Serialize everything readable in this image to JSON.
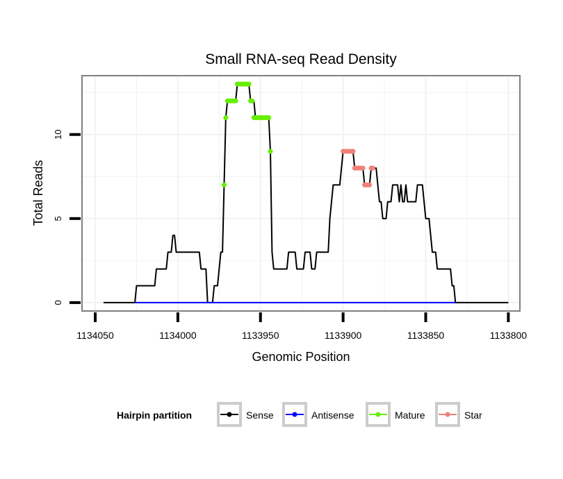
{
  "chart_data": {
    "type": "line",
    "title": "Small RNA-seq Read Density",
    "xlabel": "Genomic Position",
    "ylabel": "Total Reads",
    "xlim": [
      1134058,
      1133793
    ],
    "ylim": [
      -0.5,
      13.5
    ],
    "x_ticks": [
      1134050,
      1134000,
      1133950,
      1133900,
      1133850,
      1133800
    ],
    "x_tick_labels": [
      "1134050",
      "1134000",
      "1133950",
      "1133900",
      "1133850",
      "1133800"
    ],
    "y_ticks": [
      0,
      5,
      10
    ],
    "y_tick_labels": [
      "0",
      "5",
      "10"
    ],
    "legend": {
      "title": "Hairpin partition",
      "placement": "bottom",
      "entries": [
        "Sense",
        "Antisense",
        "Mature",
        "Star"
      ]
    },
    "colors": {
      "Sense": "#000000",
      "Antisense": "#0000ff",
      "Mature": "#66ee00",
      "Star": "#f08078",
      "grid": "#f2f2f2",
      "panel_border": "#7f7f7f"
    },
    "series": [
      {
        "name": "Sense",
        "points": [
          [
            1134045,
            0
          ],
          [
            1134026,
            0
          ],
          [
            1134025,
            1
          ],
          [
            1134014,
            1
          ],
          [
            1134013,
            2
          ],
          [
            1134007,
            2
          ],
          [
            1134006,
            3
          ],
          [
            1134004,
            3
          ],
          [
            1134003,
            4
          ],
          [
            1134002,
            4
          ],
          [
            1134001,
            3
          ],
          [
            1133987,
            3
          ],
          [
            1133986,
            2
          ],
          [
            1133983,
            2
          ],
          [
            1133982,
            0
          ],
          [
            1133979,
            0
          ],
          [
            1133978,
            1
          ],
          [
            1133976,
            1
          ],
          [
            1133975,
            2
          ],
          [
            1133974,
            3
          ],
          [
            1133973,
            3
          ],
          [
            1133972,
            7
          ],
          [
            1133971,
            11
          ],
          [
            1133970,
            12
          ],
          [
            1133965,
            12
          ],
          [
            1133964,
            13
          ],
          [
            1133957,
            13
          ],
          [
            1133956,
            12
          ],
          [
            1133954,
            12
          ],
          [
            1133953,
            11
          ],
          [
            1133945,
            11
          ],
          [
            1133944,
            9
          ],
          [
            1133943,
            3
          ],
          [
            1133942,
            2
          ],
          [
            1133934,
            2
          ],
          [
            1133933,
            3
          ],
          [
            1133929,
            3
          ],
          [
            1133928,
            2
          ],
          [
            1133924,
            2
          ],
          [
            1133923,
            3
          ],
          [
            1133920,
            3
          ],
          [
            1133919,
            2
          ],
          [
            1133917,
            2
          ],
          [
            1133916,
            3
          ],
          [
            1133909,
            3
          ],
          [
            1133908,
            5
          ],
          [
            1133907,
            6
          ],
          [
            1133906,
            7
          ],
          [
            1133902,
            7
          ],
          [
            1133901,
            8
          ],
          [
            1133900,
            9
          ],
          [
            1133894,
            9
          ],
          [
            1133893,
            8
          ],
          [
            1133888,
            8
          ],
          [
            1133887,
            7
          ],
          [
            1133884,
            7
          ],
          [
            1133883,
            8
          ],
          [
            1133880,
            8
          ],
          [
            1133879,
            7
          ],
          [
            1133878,
            6
          ],
          [
            1133877,
            6
          ],
          [
            1133876,
            5
          ],
          [
            1133874,
            5
          ],
          [
            1133873,
            6
          ],
          [
            1133871,
            6
          ],
          [
            1133870,
            7
          ],
          [
            1133867,
            7
          ],
          [
            1133866,
            6
          ],
          [
            1133865,
            7
          ],
          [
            1133864,
            6
          ],
          [
            1133863,
            6
          ],
          [
            1133862,
            7
          ],
          [
            1133861,
            6
          ],
          [
            1133856,
            6
          ],
          [
            1133855,
            7
          ],
          [
            1133852,
            7
          ],
          [
            1133851,
            6
          ],
          [
            1133850,
            5
          ],
          [
            1133848,
            5
          ],
          [
            1133847,
            4
          ],
          [
            1133846,
            3
          ],
          [
            1133844,
            3
          ],
          [
            1133843,
            2
          ],
          [
            1133835,
            2
          ],
          [
            1133834,
            1
          ],
          [
            1133833,
            1
          ],
          [
            1133832,
            0
          ],
          [
            1133800,
            0
          ]
        ]
      },
      {
        "name": "Antisense",
        "points": [
          [
            1134026,
            0
          ],
          [
            1133832,
            0
          ]
        ]
      },
      {
        "name": "Mature",
        "points": [
          [
            1133972,
            7
          ],
          [
            1133971,
            11
          ],
          [
            1133970,
            12
          ],
          [
            1133969,
            12
          ],
          [
            1133968,
            12
          ],
          [
            1133967,
            12
          ],
          [
            1133966,
            12
          ],
          [
            1133965,
            12
          ],
          [
            1133964,
            13
          ],
          [
            1133963,
            13
          ],
          [
            1133962,
            13
          ],
          [
            1133961,
            13
          ],
          [
            1133960,
            13
          ],
          [
            1133959,
            13
          ],
          [
            1133958,
            13
          ],
          [
            1133957,
            13
          ],
          [
            1133956,
            12
          ],
          [
            1133955,
            12
          ],
          [
            1133954,
            11
          ],
          [
            1133953,
            11
          ],
          [
            1133952,
            11
          ],
          [
            1133951,
            11
          ],
          [
            1133950,
            11
          ],
          [
            1133949,
            11
          ],
          [
            1133948,
            11
          ],
          [
            1133947,
            11
          ],
          [
            1133946,
            11
          ],
          [
            1133945,
            11
          ],
          [
            1133944,
            9
          ]
        ]
      },
      {
        "name": "Star",
        "points": [
          [
            1133900,
            9
          ],
          [
            1133899,
            9
          ],
          [
            1133898,
            9
          ],
          [
            1133897,
            9
          ],
          [
            1133896,
            9
          ],
          [
            1133895,
            9
          ],
          [
            1133894,
            9
          ],
          [
            1133893,
            8
          ],
          [
            1133892,
            8
          ],
          [
            1133891,
            8
          ],
          [
            1133890,
            8
          ],
          [
            1133889,
            8
          ],
          [
            1133888,
            8
          ],
          [
            1133887,
            7
          ],
          [
            1133886,
            7
          ],
          [
            1133885,
            7
          ],
          [
            1133884,
            7
          ],
          [
            1133883,
            8
          ],
          [
            1133882,
            8
          ]
        ]
      }
    ]
  }
}
